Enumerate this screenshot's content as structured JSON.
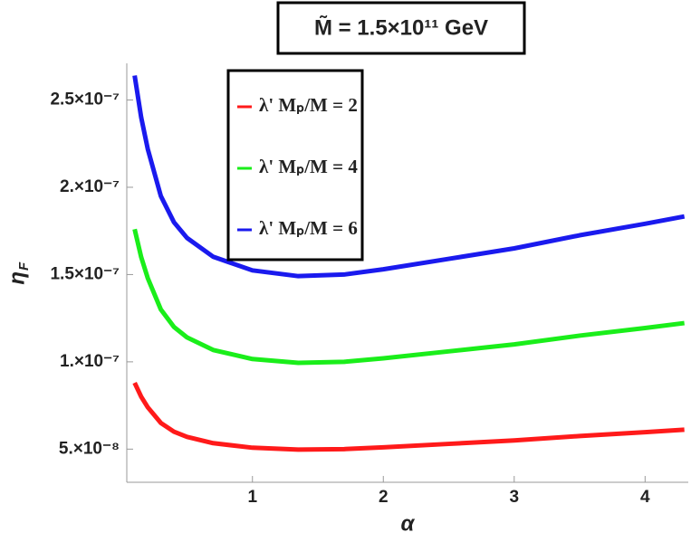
{
  "chart_data": {
    "type": "line",
    "title": "M̃ = 1.5×10¹¹ GeV",
    "x_label": "α",
    "y_label": {
      "main": "η",
      "sub": "F"
    },
    "x": [
      0.1,
      0.15,
      0.2,
      0.3,
      0.4,
      0.5,
      0.7,
      1,
      1.35,
      1.7,
      2,
      2.5,
      3,
      3.5,
      4,
      4.3
    ],
    "series": [
      {
        "name": "λ' Mₚ/M = 2",
        "color": "#ff1a1a",
        "values": [
          8.8e-08,
          8e-08,
          7.4e-08,
          6.5e-08,
          6e-08,
          5.7e-08,
          5.34e-08,
          5.08e-08,
          4.97e-08,
          5e-08,
          5.1e-08,
          5.3e-08,
          5.5e-08,
          5.75e-08,
          5.97e-08,
          6.11e-08
        ]
      },
      {
        "name": "λ' Mₚ/M = 4",
        "color": "#1aee1a",
        "values": [
          1.76e-07,
          1.6e-07,
          1.48e-07,
          1.3e-07,
          1.2e-07,
          1.14e-07,
          1.068e-07,
          1.016e-07,
          9.94e-08,
          1e-07,
          1.02e-07,
          1.06e-07,
          1.1e-07,
          1.15e-07,
          1.194e-07,
          1.222e-07
        ]
      },
      {
        "name": "λ' Mₚ/M = 6",
        "color": "#1a1aee",
        "values": [
          2.64e-07,
          2.4e-07,
          2.22e-07,
          1.95e-07,
          1.8e-07,
          1.71e-07,
          1.602e-07,
          1.524e-07,
          1.491e-07,
          1.5e-07,
          1.53e-07,
          1.59e-07,
          1.65e-07,
          1.725e-07,
          1.791e-07,
          1.833e-07
        ]
      }
    ],
    "xlim": [
      0.04,
      4.33
    ],
    "ylim": [
      3.1e-08,
      2.71e-07
    ],
    "xticks": [
      1,
      2,
      3,
      4
    ],
    "yticks": [
      {
        "value": 5e-08,
        "label": "5.×10⁻⁸"
      },
      {
        "value": 1e-07,
        "label": "1.×10⁻⁷"
      },
      {
        "value": 1.5e-07,
        "label": "1.5×10⁻⁷"
      },
      {
        "value": 2e-07,
        "label": "2.×10⁻⁷"
      },
      {
        "value": 2.5e-07,
        "label": "2.5×10⁻⁷"
      }
    ],
    "legend": "top-left"
  }
}
